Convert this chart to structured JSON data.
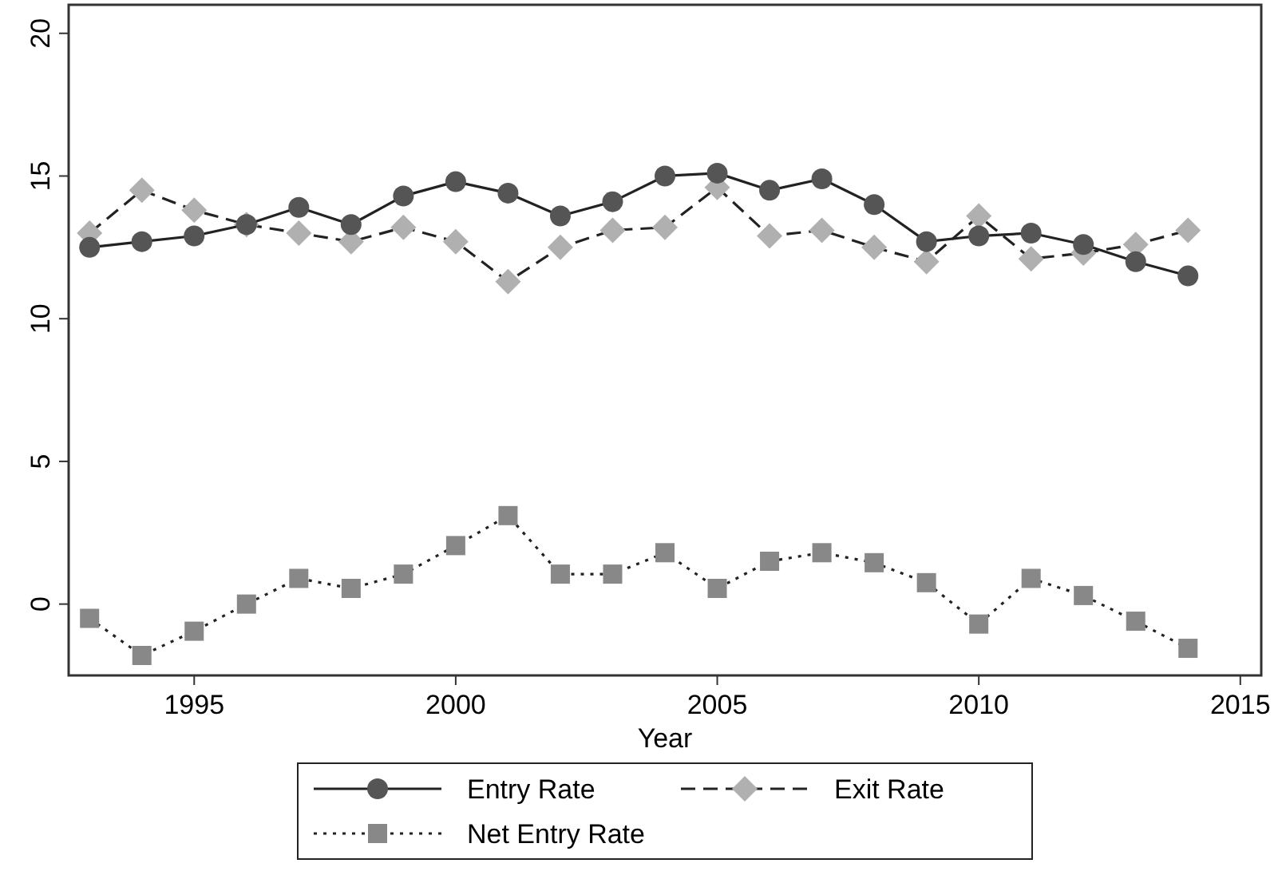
{
  "chart_data": {
    "type": "line",
    "xlabel": "Year",
    "x": [
      1993,
      1994,
      1995,
      1996,
      1997,
      1998,
      1999,
      2000,
      2001,
      2002,
      2003,
      2004,
      2005,
      2006,
      2007,
      2008,
      2009,
      2010,
      2011,
      2012,
      2013,
      2014
    ],
    "xlim": [
      1992.6,
      2015.4
    ],
    "xticks": [
      1995,
      2000,
      2005,
      2010,
      2015
    ],
    "ylim": [
      -2.5,
      21
    ],
    "yticks": [
      0,
      5,
      10,
      15,
      20
    ],
    "grid": false,
    "legend": "bottom",
    "series": [
      {
        "name": "Entry Rate",
        "color": "#555555",
        "marker": "circle",
        "line_style": "solid",
        "values": [
          12.5,
          12.7,
          12.9,
          13.3,
          13.9,
          13.3,
          14.3,
          14.8,
          14.4,
          13.6,
          14.1,
          15.0,
          15.1,
          14.5,
          14.9,
          14.0,
          12.7,
          12.9,
          13.0,
          12.6,
          12.0,
          11.5
        ]
      },
      {
        "name": "Exit Rate",
        "color": "#b0b0b0",
        "marker": "diamond",
        "line_style": "dashed",
        "values": [
          13.0,
          14.5,
          13.8,
          13.3,
          13.0,
          12.7,
          13.2,
          12.7,
          11.3,
          12.5,
          13.1,
          13.2,
          14.6,
          12.9,
          13.1,
          12.5,
          12.0,
          13.6,
          12.1,
          12.3,
          12.6,
          13.1
        ]
      },
      {
        "name": "Net Entry Rate",
        "color": "#888888",
        "marker": "square",
        "line_style": "dotted",
        "values": [
          -0.5,
          -1.8,
          -0.95,
          0,
          0.9,
          0.55,
          1.05,
          2.05,
          3.1,
          1.05,
          1.05,
          1.8,
          0.55,
          1.5,
          1.8,
          1.45,
          0.75,
          -0.7,
          0.9,
          0.3,
          -0.6,
          -1.55
        ]
      }
    ]
  }
}
